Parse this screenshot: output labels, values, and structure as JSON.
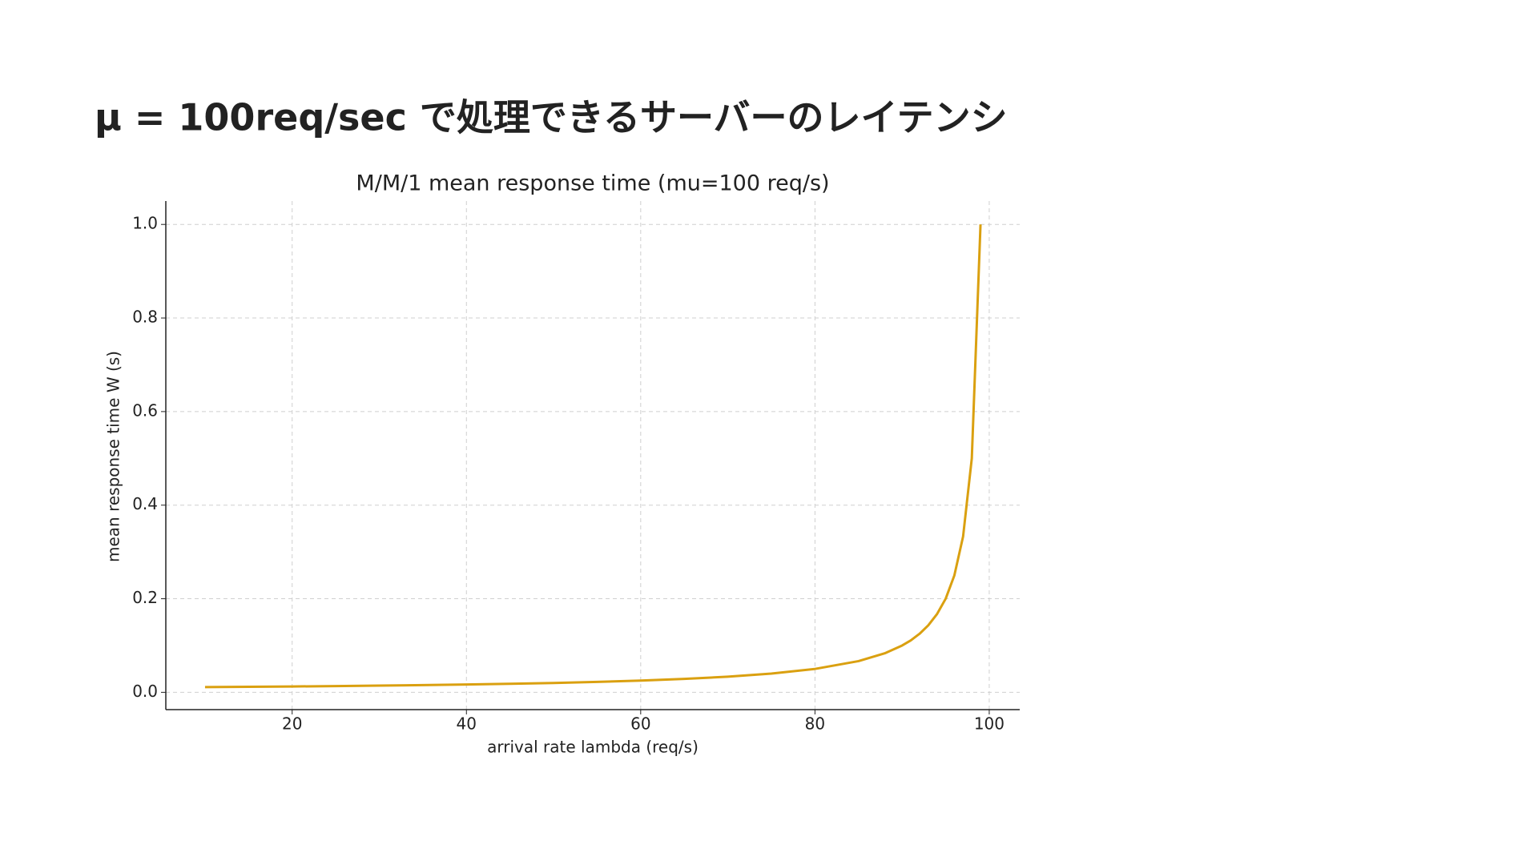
{
  "heading": "μ = 100req/sec で処理できるサーバーのレイテンシ",
  "chart_data": {
    "type": "line",
    "title": "M/M/1 mean response time (mu=100 req/s)",
    "x_label": "arrival rate lambda (req/s)",
    "y_label": "mean response time W (s)",
    "x": [
      10,
      15,
      20,
      25,
      30,
      35,
      40,
      45,
      50,
      55,
      60,
      65,
      70,
      75,
      80,
      85,
      88,
      90,
      91,
      92,
      93,
      94,
      95,
      96,
      97,
      98,
      99
    ],
    "series": [
      {
        "name": "W",
        "color": "#daa010",
        "values": [
          0.0111,
          0.0118,
          0.0125,
          0.0133,
          0.0143,
          0.0154,
          0.0167,
          0.0182,
          0.02,
          0.0222,
          0.025,
          0.0286,
          0.0333,
          0.04,
          0.05,
          0.0667,
          0.0833,
          0.1,
          0.111,
          0.125,
          0.143,
          0.167,
          0.2,
          0.25,
          0.333,
          0.5,
          1.0
        ]
      }
    ],
    "xlim": [
      5.5,
      103.5
    ],
    "ylim": [
      -0.037,
      1.05
    ],
    "xticks": [
      20,
      40,
      60,
      80,
      100
    ],
    "yticks": [
      {
        "value": 0,
        "label": "0.0"
      },
      {
        "value": 0.2,
        "label": "0.2"
      },
      {
        "value": 0.4,
        "label": "0.4"
      },
      {
        "value": 0.6,
        "label": "0.6"
      },
      {
        "value": 0.8,
        "label": "0.8"
      },
      {
        "value": 1.0,
        "label": "1.0"
      }
    ],
    "grid": true
  }
}
